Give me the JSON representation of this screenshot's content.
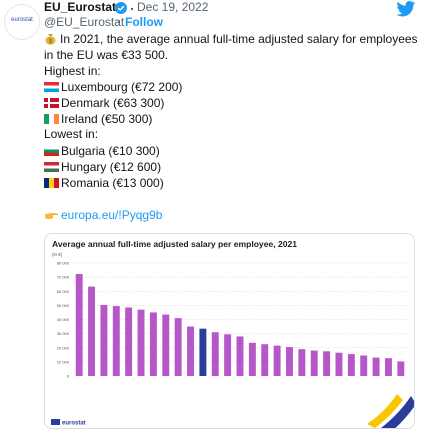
{
  "tweet": {
    "avatar_text": "eurostat",
    "name": "EU_Eurostat",
    "date": "Dec 19, 2022",
    "handle": "@EU_Eurostat",
    "follow": "Follow",
    "intro": "In 2021, the average annual full-time adjusted salary for employees in the EU was €33 500.",
    "highest_heading": "Highest in:",
    "highest": [
      "Luxembourg (€72 200)",
      "Denmark (€63 300)",
      "Ireland (€50 300)"
    ],
    "lowest_heading": "Lowest in:",
    "lowest": [
      "Bulgaria (€10 300)",
      "Hungary (€12 600)",
      "Romania (€13 000)"
    ],
    "link": "europa.eu/!Pyqg9b"
  },
  "chart_data": {
    "type": "bar",
    "title": "Average annual full-time adjusted salary per employee, 2021",
    "subtitle": "(in €)",
    "values": [
      72200,
      63300,
      50300,
      49500,
      48500,
      47000,
      45000,
      43500,
      41000,
      35000,
      33500,
      31000,
      29500,
      28000,
      23500,
      22500,
      21500,
      20500,
      19000,
      18000,
      17500,
      16500,
      15500,
      14500,
      13000,
      12600,
      10300
    ],
    "colors": [
      "#b657c9",
      "#b657c9",
      "#b657c9",
      "#b657c9",
      "#b657c9",
      "#b657c9",
      "#b657c9",
      "#b657c9",
      "#b657c9",
      "#b657c9",
      "#2a3d99",
      "#b657c9",
      "#b657c9",
      "#b657c9",
      "#b657c9",
      "#b657c9",
      "#b657c9",
      "#b657c9",
      "#b657c9",
      "#b657c9",
      "#b657c9",
      "#b657c9",
      "#b657c9",
      "#b657c9",
      "#b657c9",
      "#b657c9",
      "#b657c9"
    ],
    "ylim": [
      0,
      80000
    ],
    "yticks": [
      0,
      {
        "value": 10000,
        "label": "10 000"
      },
      {
        "value": 20000,
        "label": "20 000"
      },
      {
        "value": 30000,
        "label": "30 000"
      },
      {
        "value": 40000,
        "label": "40 000"
      },
      {
        "value": 50000,
        "label": "50 000"
      },
      {
        "value": 60000,
        "label": "60 000"
      },
      {
        "value": 70000,
        "label": "70 000"
      },
      {
        "value": 80000,
        "label": "80 000"
      }
    ],
    "grid": true,
    "footer": "eurostat"
  }
}
